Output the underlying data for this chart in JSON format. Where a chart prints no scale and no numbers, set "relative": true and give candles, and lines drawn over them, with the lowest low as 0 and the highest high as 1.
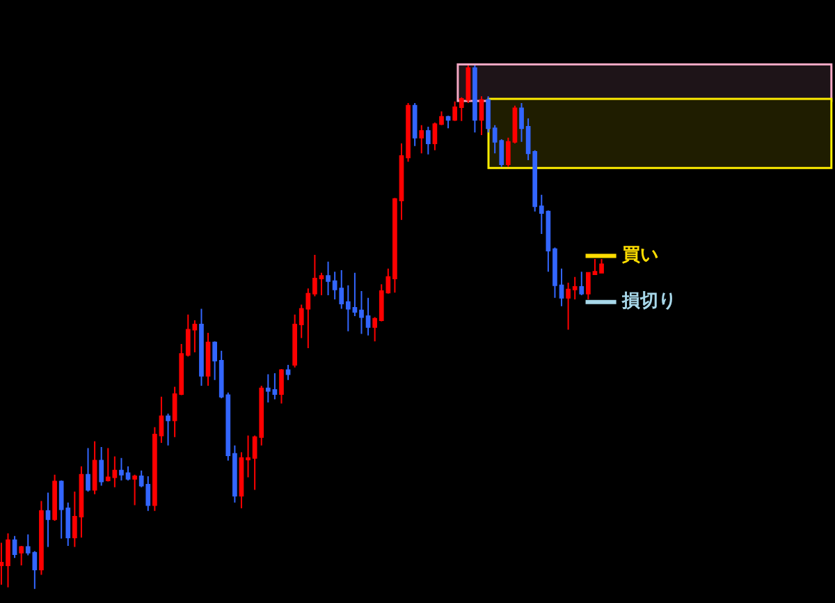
{
  "chart_data": {
    "type": "candlestick",
    "relative": true,
    "categories": [
      null,
      null,
      null,
      null,
      null,
      null,
      null,
      null,
      null,
      null,
      null,
      null,
      null,
      null,
      null,
      null,
      null,
      null,
      null,
      null,
      null,
      null,
      null,
      null,
      null,
      null,
      null,
      null,
      null,
      null,
      null,
      null,
      null,
      null,
      null,
      null,
      null,
      null,
      null,
      null,
      null,
      null,
      null,
      null,
      null,
      null,
      null,
      null,
      null,
      null,
      null,
      null,
      null,
      null,
      null,
      null,
      null,
      null,
      null,
      null,
      null,
      null,
      null,
      null,
      null,
      null,
      null,
      null,
      null,
      null,
      null,
      null,
      null,
      null,
      null,
      null,
      null,
      null,
      null,
      null,
      null,
      null,
      null,
      null,
      null,
      null,
      null,
      null,
      null,
      null,
      null
    ],
    "ohlc": [
      [
        0.045,
        0.088,
        0.008,
        0.05
      ],
      [
        0.045,
        0.106,
        0.003,
        0.093
      ],
      [
        0.093,
        0.101,
        0.059,
        0.066
      ],
      [
        0.069,
        0.082,
        0.045,
        0.08
      ],
      [
        0.08,
        0.104,
        0.064,
        0.069
      ],
      [
        0.069,
        0.072,
        0,
        0.037
      ],
      [
        0.037,
        0.168,
        0.027,
        0.149
      ],
      [
        0.149,
        0.184,
        0.08,
        0.133
      ],
      [
        0.133,
        0.218,
        0.13,
        0.205
      ],
      [
        0.205,
        0.207,
        0.096,
        0.152
      ],
      [
        0.154,
        0.165,
        0.082,
        0.098
      ],
      [
        0.098,
        0.186,
        0.08,
        0.138
      ],
      [
        0.138,
        0.234,
        0.098,
        0.218
      ],
      [
        0.218,
        0.269,
        0.186,
        0.189
      ],
      [
        0.189,
        0.282,
        0.181,
        0.245
      ],
      [
        0.245,
        0.271,
        0.197,
        0.205
      ],
      [
        0.207,
        0.269,
        0.205,
        0.213
      ],
      [
        0.213,
        0.253,
        0.194,
        0.226
      ],
      [
        0.226,
        0.25,
        0.207,
        0.218
      ],
      [
        0.221,
        0.234,
        0.207,
        0.21
      ],
      [
        0.21,
        0.218,
        0.16,
        0.215
      ],
      [
        0.215,
        0.226,
        0.194,
        0.197
      ],
      [
        0.199,
        0.215,
        0.149,
        0.16
      ],
      [
        0.16,
        0.309,
        0.149,
        0.295
      ],
      [
        0.293,
        0.367,
        0.279,
        0.33
      ],
      [
        0.33,
        0.335,
        0.274,
        0.322
      ],
      [
        0.322,
        0.386,
        0.29,
        0.372
      ],
      [
        0.372,
        0.468,
        0.37,
        0.449
      ],
      [
        0.447,
        0.524,
        0.444,
        0.495
      ],
      [
        0.495,
        0.513,
        0.452,
        0.505
      ],
      [
        0.505,
        0.535,
        0.388,
        0.407
      ],
      [
        0.407,
        0.489,
        0.388,
        0.471
      ],
      [
        0.471,
        0.473,
        0.399,
        0.436
      ],
      [
        0.436,
        0.455,
        0.364,
        0.367
      ],
      [
        0.37,
        0.375,
        0.245,
        0.255
      ],
      [
        0.258,
        0.274,
        0.165,
        0.178
      ],
      [
        0.178,
        0.261,
        0.154,
        0.25
      ],
      [
        0.247,
        0.293,
        0.213,
        0.25
      ],
      [
        0.25,
        0.293,
        0.189,
        0.29
      ],
      [
        0.29,
        0.388,
        0.274,
        0.383
      ],
      [
        0.383,
        0.41,
        0.356,
        0.378
      ],
      [
        0.38,
        0.412,
        0.362,
        0.372
      ],
      [
        0.372,
        0.42,
        0.354,
        0.418
      ],
      [
        0.418,
        0.428,
        0.399,
        0.41
      ],
      [
        0.428,
        0.524,
        0.423,
        0.505
      ],
      [
        0.505,
        0.543,
        0.479,
        0.535
      ],
      [
        0.535,
        0.574,
        0.46,
        0.564
      ],
      [
        0.564,
        0.638,
        0.559,
        0.593
      ],
      [
        0.593,
        0.604,
        0.561,
        0.598
      ],
      [
        0.598,
        0.625,
        0.561,
        0.588
      ],
      [
        0.588,
        0.606,
        0.553,
        0.572
      ],
      [
        0.574,
        0.609,
        0.535,
        0.545
      ],
      [
        0.548,
        0.58,
        0.492,
        0.535
      ],
      [
        0.537,
        0.604,
        0.521,
        0.529
      ],
      [
        0.532,
        0.569,
        0.487,
        0.519
      ],
      [
        0.521,
        0.556,
        0.484,
        0.5
      ],
      [
        0.5,
        0.519,
        0.473,
        0.516
      ],
      [
        0.513,
        0.582,
        0.511,
        0.569
      ],
      [
        0.566,
        0.612,
        0.564,
        0.596
      ],
      [
        0.593,
        0.747,
        0.566,
        0.745
      ],
      [
        0.742,
        0.851,
        0.705,
        0.827
      ],
      [
        0.824,
        0.928,
        0.816,
        0.923
      ],
      [
        0.923,
        0.928,
        0.846,
        0.862
      ],
      [
        0.862,
        0.886,
        0.832,
        0.875
      ],
      [
        0.875,
        0.883,
        0.83,
        0.851
      ],
      [
        0.851,
        0.891,
        0.838,
        0.888
      ],
      [
        0.888,
        0.912,
        0.886,
        0.902
      ],
      [
        0.902,
        0.904,
        0.88,
        0.896
      ],
      [
        0.896,
        0.931,
        0.894,
        0.92
      ],
      [
        0.92,
        0.939,
        0.894,
        0.936
      ],
      [
        0.934,
        1,
        0.928,
        0.995
      ],
      [
        0.995,
        1,
        0.872,
        0.896
      ],
      [
        0.896,
        0.941,
        0.867,
        0.934
      ],
      [
        0.934,
        0.941,
        0.872,
        0.88
      ],
      [
        0.88,
        0.886,
        0.832,
        0.854
      ],
      [
        0.856,
        0.859,
        0.806,
        0.811
      ],
      [
        0.811,
        0.862,
        0.806,
        0.854
      ],
      [
        0.854,
        0.923,
        0.851,
        0.918
      ],
      [
        0.918,
        0.928,
        0.854,
        0.88
      ],
      [
        0.883,
        0.899,
        0.819,
        0.832
      ],
      [
        0.835,
        0.838,
        0.721,
        0.731
      ],
      [
        0.731,
        0.753,
        0.678,
        0.718
      ],
      [
        0.721,
        0.723,
        0.606,
        0.646
      ],
      [
        0.649,
        0.652,
        0.556,
        0.58
      ],
      [
        0.58,
        0.612,
        0.54,
        0.556
      ],
      [
        0.556,
        0.585,
        0.495,
        0.572
      ],
      [
        0.572,
        0.596,
        0.553,
        0.577
      ],
      [
        0.577,
        0.606,
        0.561,
        0.564
      ],
      [
        0.564,
        0.604,
        0.553,
        0.604
      ],
      [
        0.601,
        0.63,
        0.601,
        0.606
      ],
      [
        0.604,
        0.63,
        0.604,
        0.62
      ]
    ],
    "colors": [
      "#ff0000",
      "#ff0000",
      "#3366ff",
      "#ff0000",
      "#3366ff",
      "#3366ff",
      "#ff0000",
      "#3366ff",
      "#ff0000",
      "#3366ff",
      "#3366ff",
      "#ff0000",
      "#ff0000",
      "#3366ff",
      "#ff0000",
      "#3366ff",
      "#ff0000",
      "#ff0000",
      "#3366ff",
      "#3366ff",
      "#ff0000",
      "#3366ff",
      "#3366ff",
      "#ff0000",
      "#ff0000",
      "#3366ff",
      "#ff0000",
      "#ff0000",
      "#ff0000",
      "#ff0000",
      "#3366ff",
      "#ff0000",
      "#3366ff",
      "#3366ff",
      "#3366ff",
      "#3366ff",
      "#ff0000",
      "#ff0000",
      "#ff0000",
      "#ff0000",
      "#3366ff",
      "#3366ff",
      "#ff0000",
      "#3366ff",
      "#ff0000",
      "#ff0000",
      "#ff0000",
      "#ff0000",
      "#ff0000",
      "#3366ff",
      "#3366ff",
      "#3366ff",
      "#3366ff",
      "#3366ff",
      "#3366ff",
      "#3366ff",
      "#ff0000",
      "#ff0000",
      "#ff0000",
      "#ff0000",
      "#ff0000",
      "#ff0000",
      "#3366ff",
      "#ff0000",
      "#3366ff",
      "#ff0000",
      "#ff0000",
      "#3366ff",
      "#ff0000",
      "#ff0000",
      "#ff0000",
      "#3366ff",
      "#ff0000",
      "#3366ff",
      "#3366ff",
      "#3366ff",
      "#ff0000",
      "#ff0000",
      "#3366ff",
      "#3366ff",
      "#3366ff",
      "#3366ff",
      "#3366ff",
      "#3366ff",
      "#3366ff",
      "#ff0000",
      "#ff0000",
      "#3366ff",
      "#ff0000",
      "#ff0000",
      "#ff0000"
    ],
    "bands": [
      {
        "axis": "y",
        "from": 0.934,
        "to": 1,
        "color": "#f4a7c3"
      },
      {
        "axis": "y",
        "from": 0.806,
        "to": 0.934,
        "color": "#ffee00"
      }
    ],
    "ref_lines": [
      {
        "axis": "y",
        "value": 0.636,
        "label": "買い",
        "color": "#ffdd00"
      },
      {
        "axis": "y",
        "value": 0.548,
        "label": "損切り",
        "color": "#a8d8ea"
      }
    ]
  }
}
